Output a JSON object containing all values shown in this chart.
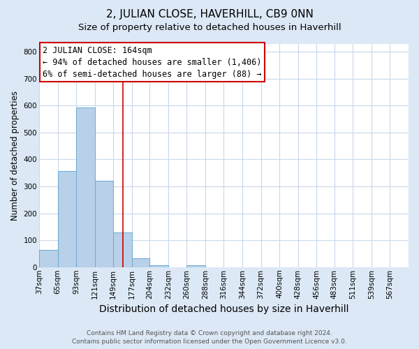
{
  "title": "2, JULIAN CLOSE, HAVERHILL, CB9 0NN",
  "subtitle": "Size of property relative to detached houses in Haverhill",
  "xlabel": "Distribution of detached houses by size in Haverhill",
  "ylabel": "Number of detached properties",
  "footer_line1": "Contains HM Land Registry data © Crown copyright and database right 2024.",
  "footer_line2": "Contains public sector information licensed under the Open Government Licence v3.0.",
  "annotation_line1": "2 JULIAN CLOSE: 164sqm",
  "annotation_line2": "← 94% of detached houses are smaller (1,406)",
  "annotation_line3": "6% of semi-detached houses are larger (88) →",
  "bar_edges": [
    37,
    65,
    93,
    121,
    149,
    177,
    204,
    232,
    260,
    288,
    316,
    344,
    372,
    400,
    428,
    456,
    483,
    511,
    539,
    567,
    595
  ],
  "bar_heights": [
    65,
    357,
    593,
    320,
    130,
    32,
    8,
    0,
    8,
    0,
    0,
    0,
    0,
    0,
    0,
    0,
    0,
    0,
    0,
    0
  ],
  "bar_color": "#b8d0e8",
  "bar_edge_color": "#6aaad4",
  "vline_color": "#cc0000",
  "vline_x": 164,
  "ylim": [
    0,
    830
  ],
  "yticks": [
    0,
    100,
    200,
    300,
    400,
    500,
    600,
    700,
    800
  ],
  "grid_color": "#c8d8ec",
  "background_color": "#dce8f5",
  "plot_bg_color": "#ffffff",
  "title_fontsize": 11,
  "subtitle_fontsize": 9.5,
  "xlabel_fontsize": 10,
  "ylabel_fontsize": 8.5,
  "tick_label_fontsize": 7.5,
  "annotation_fontsize": 8.5,
  "footer_fontsize": 6.5
}
